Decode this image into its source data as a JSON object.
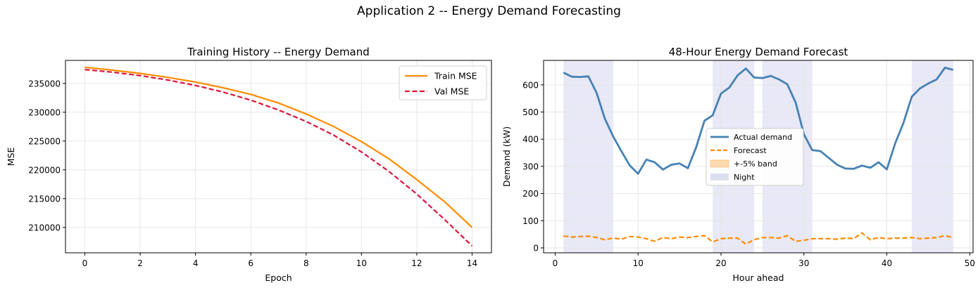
{
  "figure": {
    "suptitle": "Application 2 -- Energy Demand Forecasting"
  },
  "colors": {
    "train": "#ff8c00",
    "val": "#dc143c",
    "actual": "#4682b4",
    "forecast": "#ff8c00",
    "band": "#ff8c00",
    "night": "#ccccea",
    "grid": "#e6e6e6"
  },
  "chart_data": [
    {
      "type": "line",
      "title": "Training History -- Energy Demand",
      "xlabel": "Epoch",
      "ylabel": "MSE",
      "xlim": [
        -0.7,
        14.7
      ],
      "ylim": [
        205600,
        239000
      ],
      "xticks": [
        0,
        2,
        4,
        6,
        8,
        10,
        12,
        14
      ],
      "yticks": [
        210000,
        215000,
        220000,
        225000,
        230000,
        235000
      ],
      "grid": true,
      "legend": "top-right",
      "x": [
        0,
        1,
        2,
        3,
        4,
        5,
        6,
        7,
        8,
        9,
        10,
        11,
        12,
        13,
        14
      ],
      "series": [
        {
          "name": "Train MSE",
          "style": "solid",
          "values": [
            237800,
            237300,
            236750,
            236050,
            235250,
            234250,
            233100,
            231600,
            229700,
            227500,
            224900,
            221900,
            218300,
            214500,
            210000
          ]
        },
        {
          "name": "Val MSE",
          "style": "dashed",
          "values": [
            237400,
            236950,
            236350,
            235600,
            234650,
            233500,
            232100,
            230400,
            228400,
            226000,
            223100,
            219700,
            215800,
            211400,
            206800
          ]
        }
      ]
    },
    {
      "type": "line",
      "title": "48-Hour Energy Demand Forecast",
      "xlabel": "Hour ahead",
      "ylabel": "Demand (kW)",
      "xlim": [
        -1.4,
        50.4
      ],
      "ylim": [
        -18,
        690
      ],
      "xticks": [
        0,
        10,
        20,
        30,
        40,
        50
      ],
      "yticks": [
        0,
        100,
        200,
        300,
        400,
        500,
        600
      ],
      "grid": true,
      "legend": "center",
      "x": [
        1,
        2,
        3,
        4,
        5,
        6,
        7,
        8,
        9,
        10,
        11,
        12,
        13,
        14,
        15,
        16,
        17,
        18,
        19,
        20,
        21,
        22,
        23,
        24,
        25,
        26,
        27,
        28,
        29,
        30,
        31,
        32,
        33,
        34,
        35,
        36,
        37,
        38,
        39,
        40,
        41,
        42,
        43,
        44,
        45,
        46,
        47,
        48
      ],
      "series": [
        {
          "name": "Actual demand",
          "style": "solid",
          "values": [
            645,
            630,
            629,
            631,
            570,
            475,
            410,
            355,
            303,
            273,
            325,
            315,
            288,
            306,
            311,
            293,
            370,
            468,
            488,
            568,
            590,
            635,
            660,
            627,
            625,
            633,
            620,
            602,
            535,
            418,
            360,
            356,
            331,
            306,
            292,
            291,
            303,
            295,
            315,
            289,
            384,
            460,
            556,
            587,
            605,
            620,
            663,
            655
          ]
        },
        {
          "name": "Forecast",
          "style": "dashed",
          "values": [
            44,
            40,
            42,
            43,
            38,
            30,
            36,
            32,
            42,
            40,
            34,
            24,
            38,
            34,
            40,
            38,
            42,
            45,
            22,
            34,
            36,
            36,
            14,
            30,
            38,
            38,
            36,
            45,
            24,
            28,
            34,
            34,
            34,
            32,
            36,
            34,
            55,
            30,
            38,
            34,
            36,
            36,
            38,
            34,
            36,
            38,
            45,
            38
          ]
        },
        {
          "name": "+-5% band",
          "style": "band"
        },
        {
          "name": "Night",
          "style": "shade"
        }
      ],
      "night_spans": [
        [
          1,
          7
        ],
        [
          19,
          24
        ],
        [
          25,
          31
        ],
        [
          43,
          48
        ]
      ]
    }
  ]
}
